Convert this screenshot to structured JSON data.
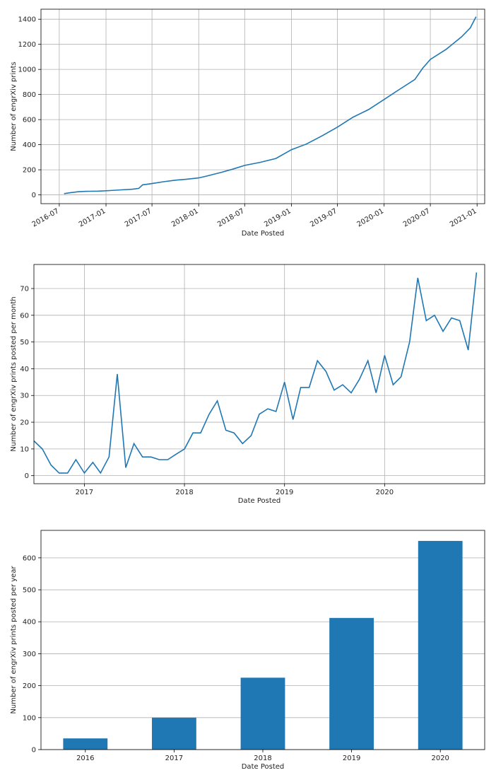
{
  "colors": {
    "line": "#1f77b4",
    "bar": "#1f77b4",
    "grid": "#b0b0b0",
    "axis": "#000000"
  },
  "chart_data": [
    {
      "type": "line",
      "title": "",
      "xlabel": "Date Posted",
      "ylabel": "Number of engrXiv prints",
      "ylim": [
        -70,
        1480
      ],
      "xlim": [
        "2016-04-20",
        "2021-01-31"
      ],
      "grid": true,
      "x_ticks": [
        {
          "date": "2016-07-01",
          "label": "2016-07"
        },
        {
          "date": "2017-01-01",
          "label": "2017-01"
        },
        {
          "date": "2017-07-01",
          "label": "2017-07"
        },
        {
          "date": "2018-01-01",
          "label": "2018-01"
        },
        {
          "date": "2018-07-01",
          "label": "2018-07"
        },
        {
          "date": "2019-01-01",
          "label": "2019-01"
        },
        {
          "date": "2019-07-01",
          "label": "2019-07"
        },
        {
          "date": "2020-01-01",
          "label": "2020-01"
        },
        {
          "date": "2020-07-01",
          "label": "2020-07"
        },
        {
          "date": "2021-01-01",
          "label": "2021-01"
        }
      ],
      "y_ticks": [
        0,
        200,
        400,
        600,
        800,
        1000,
        1200,
        1400
      ],
      "series": [
        {
          "x": [
            "2016-07-20",
            "2016-08-15",
            "2016-09-15",
            "2016-10-15",
            "2016-12-01",
            "2017-01-15",
            "2017-03-01",
            "2017-04-15",
            "2017-05-10",
            "2017-05-25",
            "2017-07-01",
            "2017-08-15",
            "2017-10-01",
            "2017-11-15",
            "2018-01-01",
            "2018-02-01",
            "2018-04-01",
            "2018-05-15",
            "2018-07-01",
            "2018-09-01",
            "2018-11-01",
            "2019-01-01",
            "2019-03-01",
            "2019-05-01",
            "2019-07-01",
            "2019-09-01",
            "2019-11-01",
            "2020-01-01",
            "2020-03-01",
            "2020-05-01",
            "2020-06-01",
            "2020-07-01",
            "2020-09-01",
            "2020-11-01",
            "2020-12-05",
            "2020-12-28"
          ],
          "y": [
            10,
            18,
            25,
            28,
            30,
            34,
            40,
            45,
            52,
            80,
            90,
            105,
            117,
            125,
            135,
            150,
            180,
            205,
            235,
            260,
            290,
            360,
            405,
            470,
            540,
            620,
            680,
            760,
            840,
            920,
            1010,
            1080,
            1160,
            1260,
            1330,
            1420
          ]
        }
      ]
    },
    {
      "type": "line",
      "title": "",
      "xlabel": "Date Posted",
      "ylabel": "Number of engrXiv prints posted per month",
      "ylim": [
        -3,
        79
      ],
      "xlim": [
        "2016-07-01",
        "2020-12-31"
      ],
      "grid": true,
      "x_ticks": [
        {
          "date": "2017-01-01",
          "label": "2017"
        },
        {
          "date": "2018-01-01",
          "label": "2018"
        },
        {
          "date": "2019-01-01",
          "label": "2019"
        },
        {
          "date": "2020-01-01",
          "label": "2020"
        }
      ],
      "y_ticks": [
        0,
        10,
        20,
        30,
        40,
        50,
        60,
        70
      ],
      "series": [
        {
          "x": [
            "2016-07",
            "2016-08",
            "2016-09",
            "2016-10",
            "2016-11",
            "2016-12",
            "2017-01",
            "2017-02",
            "2017-03",
            "2017-04",
            "2017-05",
            "2017-06",
            "2017-07",
            "2017-08",
            "2017-09",
            "2017-10",
            "2017-11",
            "2017-12",
            "2018-01",
            "2018-02",
            "2018-03",
            "2018-04",
            "2018-05",
            "2018-06",
            "2018-07",
            "2018-08",
            "2018-09",
            "2018-10",
            "2018-11",
            "2018-12",
            "2019-01",
            "2019-02",
            "2019-03",
            "2019-04",
            "2019-05",
            "2019-06",
            "2019-07",
            "2019-08",
            "2019-09",
            "2019-10",
            "2019-11",
            "2019-12",
            "2020-01",
            "2020-02",
            "2020-03",
            "2020-04",
            "2020-05",
            "2020-06",
            "2020-07",
            "2020-08",
            "2020-09",
            "2020-10",
            "2020-11",
            "2020-12"
          ],
          "y": [
            13,
            10,
            4,
            1,
            1,
            6,
            1,
            5,
            1,
            7,
            38,
            3,
            12,
            7,
            7,
            6,
            6,
            8,
            10,
            16,
            16,
            23,
            28,
            17,
            16,
            12,
            15,
            23,
            25,
            24,
            35,
            21,
            33,
            33,
            43,
            39,
            32,
            34,
            31,
            36,
            43,
            31,
            45,
            34,
            37,
            50,
            74,
            58,
            60,
            54,
            59,
            58,
            47,
            76
          ]
        }
      ]
    },
    {
      "type": "bar",
      "title": "",
      "xlabel": "Date Posted",
      "ylabel": "Number of engrXiv prints posted per year",
      "ylim": [
        0,
        686
      ],
      "grid": true,
      "categories": [
        "2016",
        "2017",
        "2018",
        "2019",
        "2020"
      ],
      "values": [
        35,
        100,
        225,
        412,
        653
      ],
      "y_ticks": [
        0,
        100,
        200,
        300,
        400,
        500,
        600
      ]
    }
  ]
}
